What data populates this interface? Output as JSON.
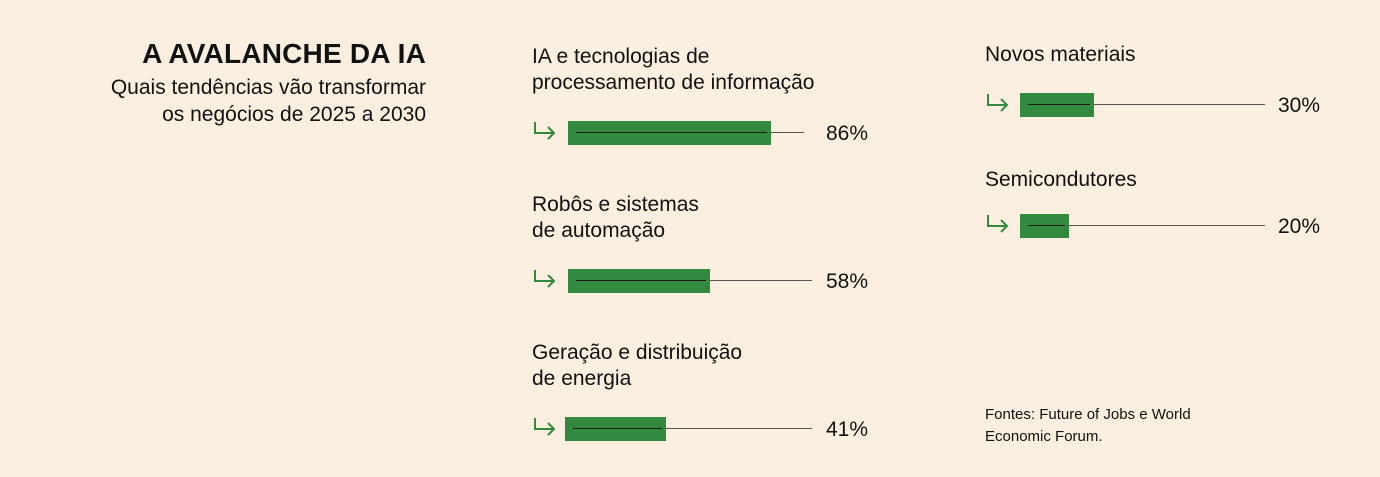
{
  "header": {
    "title": "A AVALANCHE DA IA",
    "subtitle_line1": "Quais tendências vão transformar",
    "subtitle_line2": "os negócios de 2025 a 2030"
  },
  "source": {
    "label": "Fontes:",
    "text_line1": " Future of Jobs e World",
    "text_line2": "Economic Forum."
  },
  "colors": {
    "background": "#fcefe0",
    "bar": "#338a3e",
    "arrow": "#338a3e",
    "track": "#555555"
  },
  "chart_data": {
    "type": "bar",
    "orientation": "horizontal",
    "categories": [
      "IA e tecnologias de\nprocessamento de informação",
      "Robôs e sistemas\nde automação",
      "Geração e distribuição\nde energia",
      "Novos materiais",
      "Semicondutores"
    ],
    "values": [
      86,
      58,
      41,
      30,
      20
    ],
    "value_labels": [
      "86%",
      "58%",
      "41%",
      "30%",
      "20%"
    ],
    "unit": "%",
    "xlim": [
      0,
      100
    ],
    "grid": false,
    "legend": "none"
  }
}
